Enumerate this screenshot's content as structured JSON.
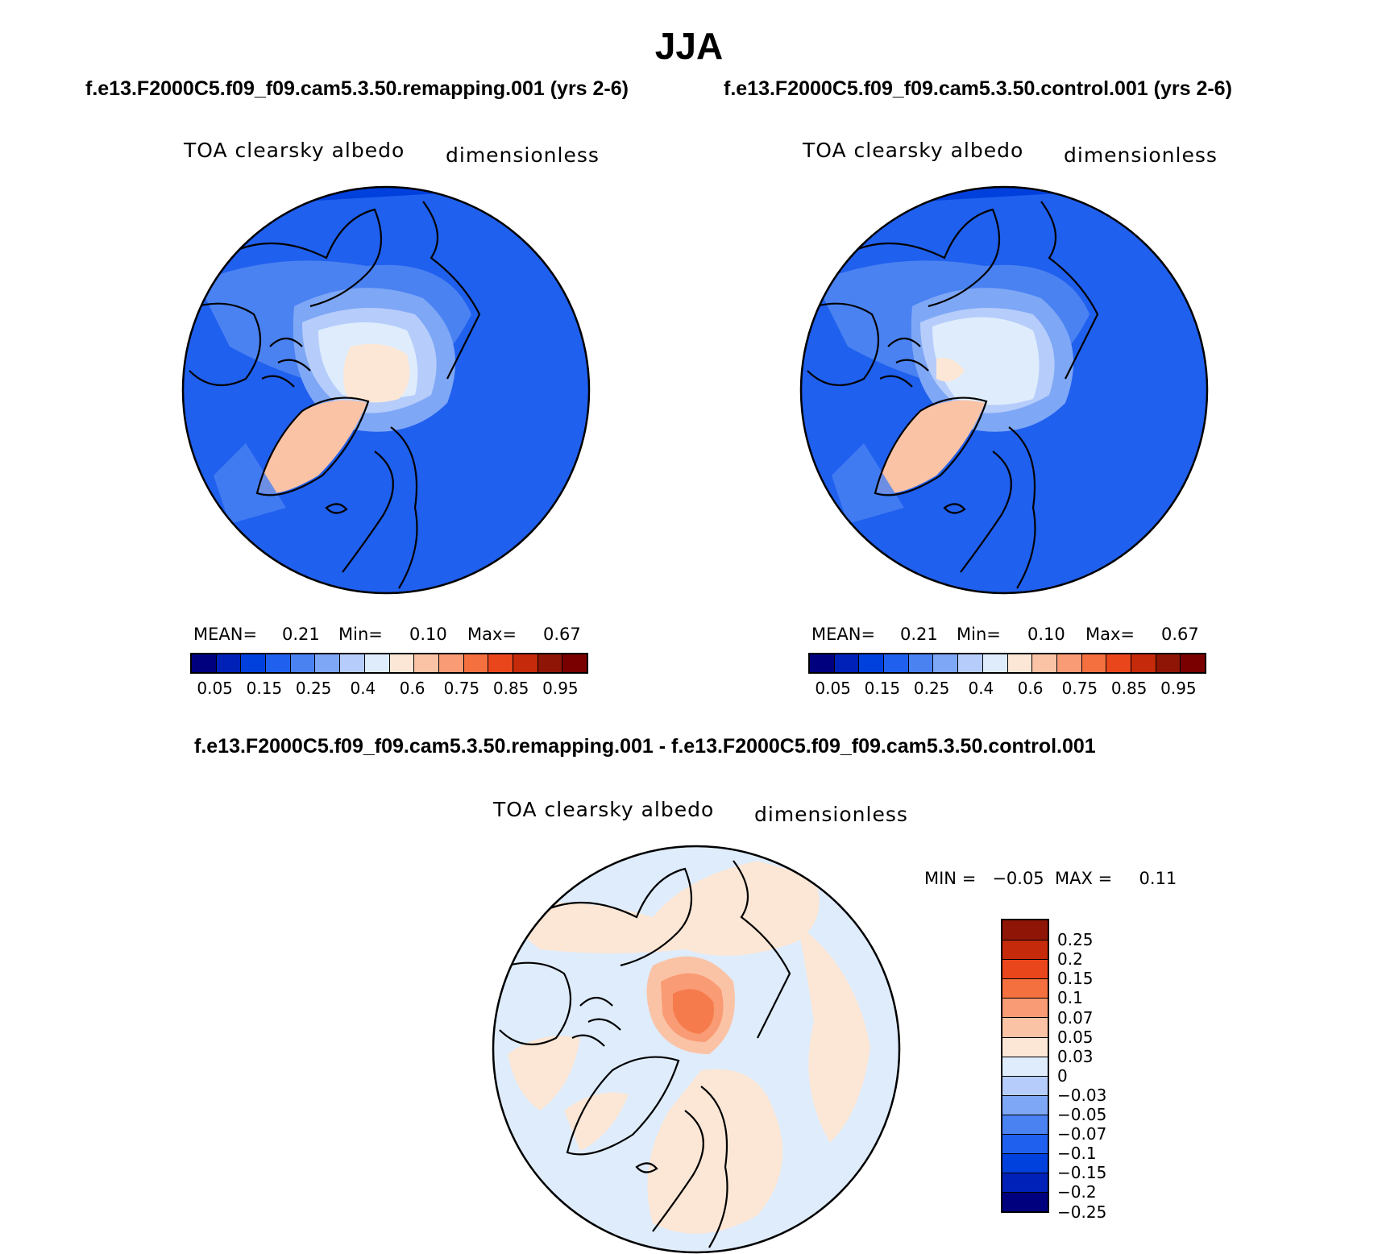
{
  "title": "JJA",
  "panels": [
    {
      "case_label": "f.e13.F2000C5.f09_f09.cam5.3.50.remapping.001 (yrs 2-6)",
      "variable": "TOA clearsky albedo",
      "units": "dimensionless",
      "stats": {
        "mean_label": "MEAN=",
        "mean": "0.21",
        "min_label": "Min=",
        "min": "0.10",
        "max_label": "Max=",
        "max": "0.67"
      }
    },
    {
      "case_label": "f.e13.F2000C5.f09_f09.cam5.3.50.control.001 (yrs 2-6)",
      "variable": "TOA clearsky albedo",
      "units": "dimensionless",
      "stats": {
        "mean_label": "MEAN=",
        "mean": "0.21",
        "min_label": "Min=",
        "min": "0.10",
        "max_label": "Max=",
        "max": "0.67"
      }
    }
  ],
  "difference": {
    "case_label": "f.e13.F2000C5.f09_f09.cam5.3.50.remapping.001 - f.e13.F2000C5.f09_f09.cam5.3.50.control.001",
    "variable": "TOA clearsky albedo",
    "units": "dimensionless",
    "stats_text": "MIN =   −0.05  MAX =     0.11"
  },
  "colorbar_main": {
    "colors": [
      "#00007f",
      "#0021b7",
      "#0040dd",
      "#2060ee",
      "#4a82f2",
      "#7ea7f6",
      "#b6cdfb",
      "#deecfc",
      "#fce7d6",
      "#fbc3a6",
      "#f99b74",
      "#f4703f",
      "#e9461c",
      "#c52a0a",
      "#8f1507",
      "#7a0000"
    ],
    "ticks": [
      "0.05",
      "0.15",
      "0.25",
      "0.4",
      "0.6",
      "0.75",
      "0.85",
      "0.95"
    ]
  },
  "colorbar_diff": {
    "colors": [
      "#8f1507",
      "#c52a0a",
      "#e9461c",
      "#f4703f",
      "#f99b74",
      "#fbc3a6",
      "#fce7d6",
      "#deecfc",
      "#b6cdfb",
      "#7ea7f6",
      "#4a82f2",
      "#2060ee",
      "#0040dd",
      "#0021b7",
      "#00007f"
    ],
    "ticks": [
      "0.25",
      "0.2",
      "0.15",
      "0.1",
      "0.07",
      "0.05",
      "0.03",
      "0",
      "−0.03",
      "−0.05",
      "−0.07",
      "−0.1",
      "−0.15",
      "−0.2",
      "−0.25"
    ]
  }
}
